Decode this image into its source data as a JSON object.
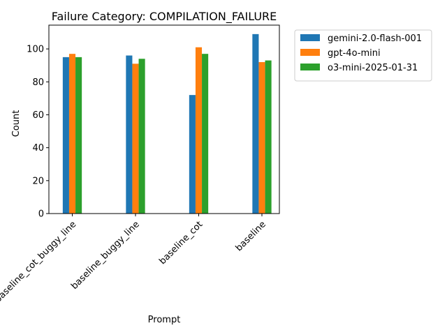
{
  "chart_data": {
    "type": "bar",
    "title": "Failure Category: COMPILATION_FAILURE",
    "xlabel": "Prompt",
    "ylabel": "Count",
    "categories": [
      "baseline_cot_buggy_line",
      "baseline_buggy_line",
      "baseline_cot",
      "baseline"
    ],
    "series": [
      {
        "name": "gemini-2.0-flash-001",
        "color": "#1f77b4",
        "values": [
          95,
          96,
          72,
          109
        ]
      },
      {
        "name": "gpt-4o-mini",
        "color": "#ff7f0e",
        "values": [
          97,
          91,
          101,
          92
        ]
      },
      {
        "name": "o3-mini-2025-01-31",
        "color": "#2ca02c",
        "values": [
          95,
          94,
          97,
          93
        ]
      }
    ],
    "ylim": [
      0,
      114.45
    ],
    "yticks": [
      0,
      20,
      40,
      60,
      80,
      100
    ],
    "grid": false,
    "legend_position": "outside-right"
  }
}
